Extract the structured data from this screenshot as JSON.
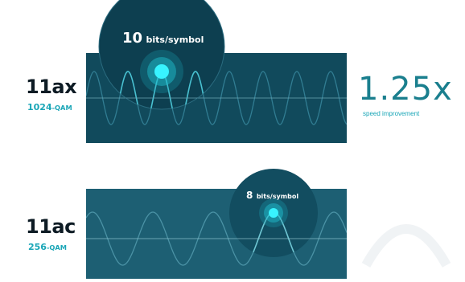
{
  "ax": {
    "standard": "11ax",
    "modulation_number": "1024",
    "modulation_suffix": "-QAM",
    "bits_number": "10",
    "bits_unit": "bits/symbol"
  },
  "ac": {
    "standard": "11ac",
    "modulation_number": "256",
    "modulation_suffix": "-QAM",
    "bits_number": "8",
    "bits_unit": "bits/symbol"
  },
  "comparison": {
    "value": "1.25x",
    "label": "speed improvement"
  },
  "colors": {
    "panel_ax": "#114a5c",
    "panel_ac": "#1d5f73",
    "accent": "#1aa6b7",
    "glow": "#22e6f0",
    "text_dark": "#0d1b24"
  }
}
